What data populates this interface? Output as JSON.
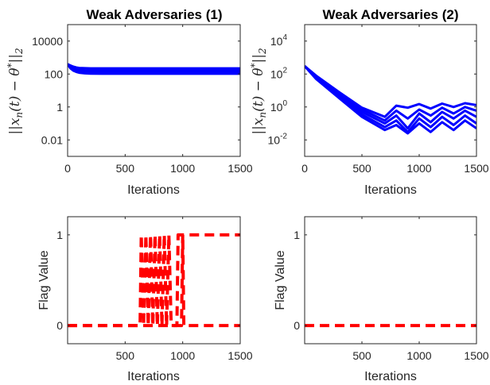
{
  "chart_data": [
    {
      "type": "line",
      "title": "Weak Adversaries (1)",
      "xlabel": "Iterations",
      "ylabel": "||x_n(t) − θ*||_2",
      "yscale": "log",
      "xlim": [
        0,
        1500
      ],
      "ylim": [
        0.001,
        100000
      ],
      "xticks": [
        "0",
        "500",
        "1000",
        "1500"
      ],
      "yticks": [
        {
          "value": 10000,
          "label": "10000"
        },
        {
          "value": 100,
          "label": "100"
        },
        {
          "value": 1,
          "label": "1"
        },
        {
          "value": 0.01,
          "label": "0.01"
        }
      ],
      "series_color": "#0000ff",
      "series": [
        {
          "name": "",
          "x": [
            0,
            25,
            50,
            75,
            100,
            150,
            200,
            300,
            500,
            750,
            1000,
            1250,
            1500
          ],
          "values": [
            400,
            330,
            280,
            250,
            235,
            225,
            222,
            220,
            220,
            220,
            220,
            220,
            220
          ]
        },
        {
          "name": "",
          "x": [
            0,
            25,
            50,
            75,
            100,
            150,
            200,
            300,
            500,
            750,
            1000,
            1250,
            1500
          ],
          "values": [
            400,
            290,
            230,
            200,
            180,
            170,
            165,
            160,
            160,
            160,
            160,
            160,
            160
          ]
        },
        {
          "name": "",
          "x": [
            0,
            25,
            50,
            75,
            100,
            150,
            200,
            300,
            500,
            750,
            1000,
            1250,
            1500
          ],
          "values": [
            400,
            250,
            190,
            160,
            145,
            132,
            128,
            125,
            125,
            125,
            125,
            125,
            125
          ]
        },
        {
          "name": "",
          "x": [
            0,
            25,
            50,
            75,
            100,
            150,
            200,
            300,
            500,
            750,
            1000,
            1250,
            1500
          ],
          "values": [
            400,
            220,
            160,
            135,
            120,
            110,
            106,
            104,
            104,
            104,
            104,
            104,
            104
          ]
        }
      ]
    },
    {
      "type": "line",
      "title": "Weak Adversaries (2)",
      "xlabel": "Iterations",
      "ylabel": "||x_n(t) − θ*||_2",
      "yscale": "log",
      "xlim": [
        0,
        1500
      ],
      "ylim": [
        0.001,
        100000
      ],
      "xticks": [
        "0",
        "500",
        "1000",
        "1500"
      ],
      "yticks": [
        {
          "value": 10000,
          "base": "10",
          "exp": "4"
        },
        {
          "value": 100,
          "base": "10",
          "exp": "2"
        },
        {
          "value": 1,
          "base": "10",
          "exp": "0"
        },
        {
          "value": 0.01,
          "base": "10",
          "exp": "-2"
        }
      ],
      "series_color": "#0000ff",
      "series": [
        {
          "name": "",
          "x": [
            0,
            100,
            300,
            500,
            700,
            800,
            900,
            1000,
            1100,
            1200,
            1300,
            1400,
            1500
          ],
          "values": [
            300,
            80,
            8,
            0.9,
            0.25,
            1.2,
            0.9,
            1.5,
            0.8,
            1.6,
            1.0,
            1.7,
            1.3
          ]
        },
        {
          "name": "",
          "x": [
            0,
            100,
            300,
            500,
            700,
            800,
            900,
            1000,
            1100,
            1200,
            1300,
            1400,
            1500
          ],
          "values": [
            300,
            70,
            6,
            0.7,
            0.15,
            0.6,
            0.2,
            0.7,
            0.3,
            0.9,
            0.4,
            1.0,
            0.6
          ]
        },
        {
          "name": "",
          "x": [
            0,
            100,
            300,
            500,
            700,
            800,
            900,
            1000,
            1100,
            1200,
            1300,
            1400,
            1500
          ],
          "values": [
            300,
            60,
            5,
            0.5,
            0.1,
            0.3,
            0.05,
            0.4,
            0.12,
            0.5,
            0.2,
            0.6,
            0.25
          ]
        },
        {
          "name": "",
          "x": [
            0,
            100,
            300,
            500,
            700,
            800,
            900,
            1000,
            1100,
            1200,
            1300,
            1400,
            1500
          ],
          "values": [
            300,
            55,
            4,
            0.35,
            0.06,
            0.15,
            0.03,
            0.2,
            0.06,
            0.25,
            0.08,
            0.3,
            0.1
          ]
        },
        {
          "name": "",
          "x": [
            0,
            100,
            300,
            500,
            700,
            800,
            900,
            1000,
            1100,
            1200,
            1300,
            1400,
            1500
          ],
          "values": [
            300,
            50,
            3.5,
            0.25,
            0.04,
            0.08,
            0.025,
            0.1,
            0.03,
            0.12,
            0.04,
            0.15,
            0.05
          ]
        }
      ]
    },
    {
      "type": "line",
      "title": "",
      "xlabel": "Iterations",
      "ylabel": "Flag Value",
      "xlim": [
        0,
        1500
      ],
      "ylim": [
        -0.2,
        1.2
      ],
      "xticks": [
        "500",
        "1000",
        "1500"
      ],
      "yticks": [
        "0",
        "1"
      ],
      "line_style": "dashed",
      "series_color": "#ff0000",
      "series": [
        {
          "name": "",
          "x": [
            0,
            630,
            640,
            660,
            680,
            700,
            720,
            740,
            760,
            780,
            800,
            820,
            840,
            860,
            880,
            900,
            950,
            960,
            1000,
            1010,
            1500
          ],
          "values": [
            0,
            0,
            1,
            0,
            1,
            0,
            1,
            0,
            1,
            0,
            1,
            0,
            1,
            0,
            1,
            0,
            0,
            1,
            1,
            0,
            0
          ]
        },
        {
          "name": "",
          "x": [
            0,
            990,
            1000,
            1500
          ],
          "values": [
            0,
            0,
            1,
            1
          ]
        }
      ]
    },
    {
      "type": "line",
      "title": "",
      "xlabel": "Iterations",
      "ylabel": "Flag Value",
      "xlim": [
        0,
        1500
      ],
      "ylim": [
        -0.2,
        1.2
      ],
      "xticks": [
        "500",
        "1000",
        "1500"
      ],
      "yticks": [
        "0",
        "1"
      ],
      "line_style": "dashed",
      "series_color": "#ff0000",
      "series": [
        {
          "name": "",
          "x": [
            0,
            1500
          ],
          "values": [
            0,
            0
          ]
        }
      ]
    }
  ]
}
